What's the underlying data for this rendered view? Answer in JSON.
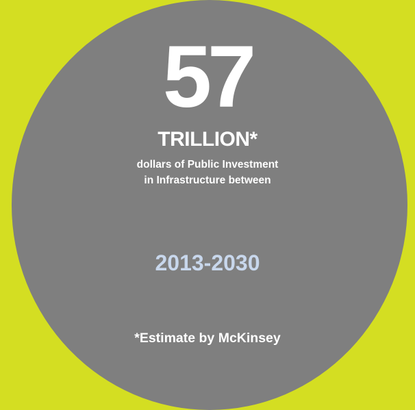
{
  "infographic": {
    "number": "57",
    "unit": "TRILLION*",
    "description_line1": "dollars of Public Investment",
    "description_line2": "in Infrastructure between",
    "years": "2013-2030",
    "footnote": "*Estimate by McKinsey"
  },
  "colors": {
    "background": "#d4de22",
    "circle": "#7f7f7f",
    "text": "#ffffff",
    "years": "#c8d7ec"
  }
}
